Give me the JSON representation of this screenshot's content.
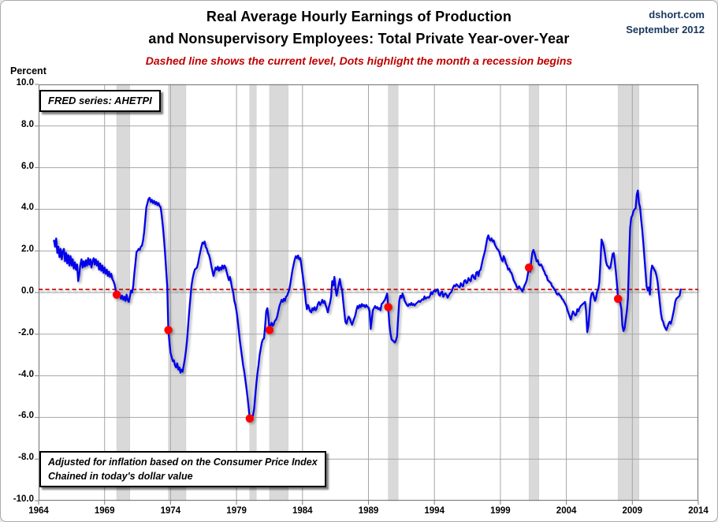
{
  "header": {
    "title_line1": "Real Average Hourly Earnings of Production",
    "title_line2": "and Nonsupervisory Employees: Total Private Year-over-Year",
    "subtitle": "Dashed line shows the current level, Dots highlight the month a recession begins",
    "credit_line1": "dshort.com",
    "credit_line2": "September 2012",
    "y_axis_label": "Percent"
  },
  "annotations": {
    "fred_box_label": "FRED series: AHETPI",
    "footnote_line1": "Adjusted for inflation based on the Consumer Price Index",
    "footnote_line2": "Chained in today's dollar value"
  },
  "colors": {
    "line": "#0000ee",
    "dashed_current_level": "#c00000",
    "recession_dot": "#ff0000",
    "recession_band": "#d9d9d9",
    "gridline": "#a6a6a6",
    "plot_border": "#808080",
    "subtitle": "#c00000",
    "credit": "#17375e"
  },
  "chart_data": {
    "type": "line",
    "title": "Real Average Hourly Earnings of Production and Nonsupervisory Employees: Total Private Year-over-Year",
    "ylabel": "Percent",
    "x_range": [
      1964,
      2014
    ],
    "y_range": [
      -10,
      10
    ],
    "grid": true,
    "x_tick_labels": [
      "1964",
      "1969",
      "1974",
      "1979",
      "1984",
      "1989",
      "1994",
      "1999",
      "2004",
      "2009",
      "2014"
    ],
    "x_tick_years": [
      1964,
      1969,
      1974,
      1979,
      1984,
      1989,
      1994,
      1999,
      2004,
      2009,
      2014
    ],
    "y_tick_labels": [
      "10.0",
      "8.0",
      "6.0",
      "4.0",
      "2.0",
      "0.0",
      "-2.0",
      "-4.0",
      "-6.0",
      "-8.0",
      "-10.0"
    ],
    "y_tick_values": [
      10,
      8,
      6,
      4,
      2,
      0,
      -2,
      -4,
      -6,
      -8,
      -10
    ],
    "current_level": 0.15,
    "recession_bands": [
      {
        "start": 1969.917,
        "end": 1970.917
      },
      {
        "start": 1973.833,
        "end": 1975.167
      },
      {
        "start": 1980.0,
        "end": 1980.5
      },
      {
        "start": 1981.5,
        "end": 1982.917
      },
      {
        "start": 1990.5,
        "end": 1991.25
      },
      {
        "start": 2001.167,
        "end": 2001.917
      },
      {
        "start": 2007.917,
        "end": 2009.5
      }
    ],
    "recession_start_dots": [
      [
        1969.917,
        -0.1
      ],
      [
        1973.833,
        -1.8
      ],
      [
        1980.0,
        -6.05
      ],
      [
        1981.5,
        -1.8
      ],
      [
        1990.5,
        -0.7
      ],
      [
        2001.167,
        1.2
      ],
      [
        2007.917,
        -0.3
      ]
    ],
    "series": {
      "name": "Real average hourly earnings YoY %",
      "start_year": 1965,
      "start_month": 3,
      "monthly_values_by_year": {
        "1965": [
          2.5,
          2.2,
          2.6,
          1.9,
          2.2,
          1.7,
          2.1,
          1.6,
          2.0,
          2.1
        ],
        "1966": [
          1.5,
          1.9,
          1.4,
          1.8,
          1.3,
          1.75,
          1.3,
          1.6,
          1.15,
          1.45,
          1.1,
          1.35
        ],
        "1967": [
          0.55,
          0.9,
          1.35,
          1.6,
          1.2,
          1.5,
          1.25,
          1.55,
          1.3,
          1.65,
          1.35,
          1.6
        ],
        "1968": [
          1.2,
          1.5,
          1.65,
          1.35,
          1.6,
          1.3,
          1.5,
          1.1,
          1.4,
          1.05,
          1.3,
          0.95
        ],
        "1969": [
          1.2,
          0.9,
          1.1,
          0.8,
          1.0,
          0.75,
          0.9,
          0.65,
          0.55,
          0.4,
          0.15,
          -0.1
        ],
        "1970": [
          0.05,
          -0.2,
          -0.1,
          -0.3,
          -0.15,
          -0.35,
          -0.2,
          -0.4,
          -0.1,
          -0.35,
          -0.45,
          -0.2
        ],
        "1971": [
          0.1,
          0.0,
          0.3,
          0.9,
          1.4,
          1.95,
          2.0,
          2.1,
          2.05,
          2.2,
          2.25,
          2.5
        ],
        "1972": [
          2.9,
          3.5,
          4.1,
          4.3,
          4.5,
          4.55,
          4.35,
          4.45,
          4.3,
          4.4,
          4.25,
          4.35
        ],
        "1973": [
          4.2,
          4.3,
          4.15,
          4.1,
          3.7,
          3.2,
          2.6,
          1.9,
          1.1,
          0.3,
          -1.8,
          -2.4
        ],
        "1974": [
          -2.9,
          -3.1,
          -3.3,
          -3.25,
          -3.5,
          -3.6,
          -3.4,
          -3.7,
          -3.6,
          -3.85,
          -3.7,
          -3.8
        ],
        "1975": [
          -3.5,
          -3.2,
          -2.8,
          -2.3,
          -1.6,
          -0.9,
          -0.3,
          0.3,
          0.65,
          0.9,
          1.1,
          1.15
        ],
        "1976": [
          1.2,
          1.4,
          1.7,
          1.95,
          2.2,
          2.4,
          2.35,
          2.45,
          2.2,
          2.1,
          1.9,
          1.8
        ],
        "1977": [
          1.6,
          1.3,
          1.05,
          0.8,
          1.0,
          1.2,
          1.1,
          1.25,
          1.05,
          1.2,
          1.1,
          1.3
        ],
        "1978": [
          1.15,
          1.3,
          1.2,
          1.0,
          0.8,
          0.6,
          0.75,
          0.5,
          0.2,
          0.0,
          -0.4,
          -0.6
        ],
        "1979": [
          -0.9,
          -1.3,
          -1.8,
          -2.3,
          -2.7,
          -3.1,
          -3.5,
          -3.8,
          -4.2,
          -4.6,
          -5.0,
          -5.5
        ],
        "1980": [
          -6.05,
          -6.1,
          -6.0,
          -5.9,
          -5.6,
          -5.0,
          -4.4,
          -3.9,
          -3.5,
          -3.0,
          -2.7,
          -2.4
        ],
        "1981": [
          -2.25,
          -2.2,
          -1.6,
          -0.9,
          -0.75,
          -1.2,
          -1.8,
          -1.6,
          -1.45,
          -1.6,
          -1.5,
          -1.35
        ],
        "1982": [
          -1.3,
          -1.15,
          -0.9,
          -0.65,
          -0.5,
          -0.35,
          -0.45,
          -0.3,
          -0.4,
          -0.2,
          -0.15,
          0.0
        ],
        "1983": [
          0.15,
          0.45,
          0.8,
          1.1,
          1.35,
          1.6,
          1.75,
          1.65,
          1.78,
          1.6,
          1.65,
          1.3
        ],
        "1984": [
          0.9,
          0.5,
          0.1,
          -0.45,
          -0.8,
          -0.6,
          -0.75,
          -0.9,
          -0.95,
          -0.75,
          -0.85,
          -0.7
        ],
        "1985": [
          -0.85,
          -0.75,
          -0.55,
          -0.45,
          -0.6,
          -0.5,
          -0.35,
          -0.5,
          -0.4,
          -0.6,
          -0.75,
          -0.95
        ],
        "1986": [
          -0.7,
          -0.5,
          -0.2,
          0.55,
          0.35,
          0.75,
          0.2,
          -0.15,
          0.1,
          0.4,
          0.65,
          0.3
        ],
        "1987": [
          0.15,
          -0.4,
          -0.9,
          -1.4,
          -1.5,
          -1.3,
          -1.15,
          -1.25,
          -1.4,
          -1.55,
          -1.4,
          -1.25
        ],
        "1988": [
          -1.1,
          -0.85,
          -0.65,
          -0.75,
          -0.6,
          -0.7,
          -0.55,
          -0.65,
          -0.6,
          -0.7,
          -0.6,
          -0.68
        ],
        "1989": [
          -0.72,
          -0.9,
          -1.75,
          -1.3,
          -0.85,
          -0.75,
          -0.65,
          -0.75,
          -0.7,
          -0.8,
          -0.75,
          -0.85
        ],
        "1990": [
          -0.55,
          -0.5,
          -0.42,
          -0.35,
          -0.2,
          -0.05,
          -0.7,
          -1.5,
          -1.95,
          -2.25,
          -2.3,
          -2.35
        ],
        "1991": [
          -2.4,
          -2.3,
          -2.1,
          -1.2,
          -0.4,
          -0.15,
          -0.25,
          -0.05,
          -0.2,
          -0.4,
          -0.5,
          -0.6
        ],
        "1992": [
          -0.65,
          -0.55,
          -0.6,
          -0.5,
          -0.6,
          -0.55,
          -0.62,
          -0.55,
          -0.5,
          -0.45,
          -0.4,
          -0.45
        ],
        "1993": [
          -0.38,
          -0.32,
          -0.35,
          -0.18,
          -0.3,
          -0.25,
          -0.22,
          -0.25,
          -0.15,
          0.02,
          -0.08,
          0.05
        ],
        "1994": [
          0.1,
          0.05,
          0.12,
          0.15,
          -0.1,
          -0.15,
          0.0,
          0.05,
          -0.2,
          -0.1,
          -0.05,
          -0.1
        ],
        "1995": [
          -0.25,
          -0.15,
          -0.05,
          0.0,
          0.1,
          0.25,
          0.35,
          0.3,
          0.4,
          0.35,
          0.28,
          0.25
        ],
        "1996": [
          0.45,
          0.35,
          0.3,
          0.55,
          0.6,
          0.45,
          0.5,
          0.7,
          0.6,
          0.55,
          0.8,
          0.85
        ],
        "1997": [
          0.7,
          0.65,
          0.95,
          1.0,
          0.8,
          1.05,
          1.1,
          1.35,
          1.6,
          1.8,
          2.0,
          2.3
        ],
        "1998": [
          2.6,
          2.75,
          2.55,
          2.5,
          2.6,
          2.45,
          2.5,
          2.3,
          2.2,
          2.1,
          2.05,
          1.95
        ],
        "1999": [
          1.75,
          1.6,
          1.5,
          1.75,
          1.6,
          1.4,
          1.3,
          1.1,
          1.15,
          1.0,
          0.95,
          0.8
        ],
        "2000": [
          0.6,
          0.5,
          0.4,
          0.25,
          0.2,
          0.3,
          0.2,
          0.15,
          0.05,
          0.2,
          0.35,
          0.45
        ],
        "2001": [
          0.6,
          0.9,
          1.2,
          1.0,
          1.5,
          1.9,
          2.05,
          1.9,
          1.7,
          1.5,
          1.55,
          1.35
        ],
        "2002": [
          1.3,
          1.35,
          1.25,
          1.1,
          1.0,
          0.85,
          0.8,
          0.6,
          0.55,
          0.5,
          0.45,
          0.3
        ],
        "2003": [
          0.25,
          0.15,
          0.1,
          -0.05,
          -0.1,
          -0.05,
          -0.12,
          -0.18,
          -0.3,
          -0.35,
          -0.45,
          -0.55
        ],
        "2004": [
          -0.65,
          -0.85,
          -1.0,
          -1.15,
          -1.3,
          -1.1,
          -0.9,
          -1.0,
          -1.1,
          -1.05,
          -0.8,
          -0.9
        ],
        "2005": [
          -0.75,
          -0.65,
          -0.6,
          -0.55,
          -0.5,
          -0.45,
          -0.9,
          -1.9,
          -1.6,
          -1.0,
          -0.3,
          -0.05
        ],
        "2006": [
          0.0,
          -0.2,
          -0.4,
          -0.25,
          0.05,
          0.15,
          0.5,
          1.4,
          2.55,
          2.4,
          2.2,
          1.9
        ],
        "2007": [
          1.5,
          1.3,
          1.25,
          1.15,
          1.2,
          1.5,
          1.85,
          1.9,
          1.5,
          1.0,
          0.4,
          -0.3
        ],
        "2008": [
          -0.28,
          -0.5,
          -0.8,
          -1.6,
          -1.85,
          -1.7,
          -1.3,
          -0.9,
          -0.3,
          1.5,
          3.1,
          3.6
        ],
        "2009": [
          3.7,
          3.9,
          4.0,
          4.05,
          4.7,
          4.9,
          4.3,
          4.1,
          3.5,
          3.0,
          2.4,
          1.7
        ],
        "2010": [
          1.0,
          0.3,
          0.1,
          0.25,
          -0.1,
          1.0,
          1.3,
          1.2,
          1.1,
          1.0,
          0.8,
          0.5
        ],
        "2011": [
          0.0,
          -0.5,
          -1.0,
          -1.3,
          -1.4,
          -1.6,
          -1.7,
          -1.8,
          -1.65,
          -1.5,
          -1.4,
          -1.5
        ],
        "2012": [
          -1.3,
          -1.05,
          -0.8,
          -0.45,
          -0.3,
          -0.25,
          -0.2,
          -0.15,
          0.15
        ]
      }
    }
  }
}
